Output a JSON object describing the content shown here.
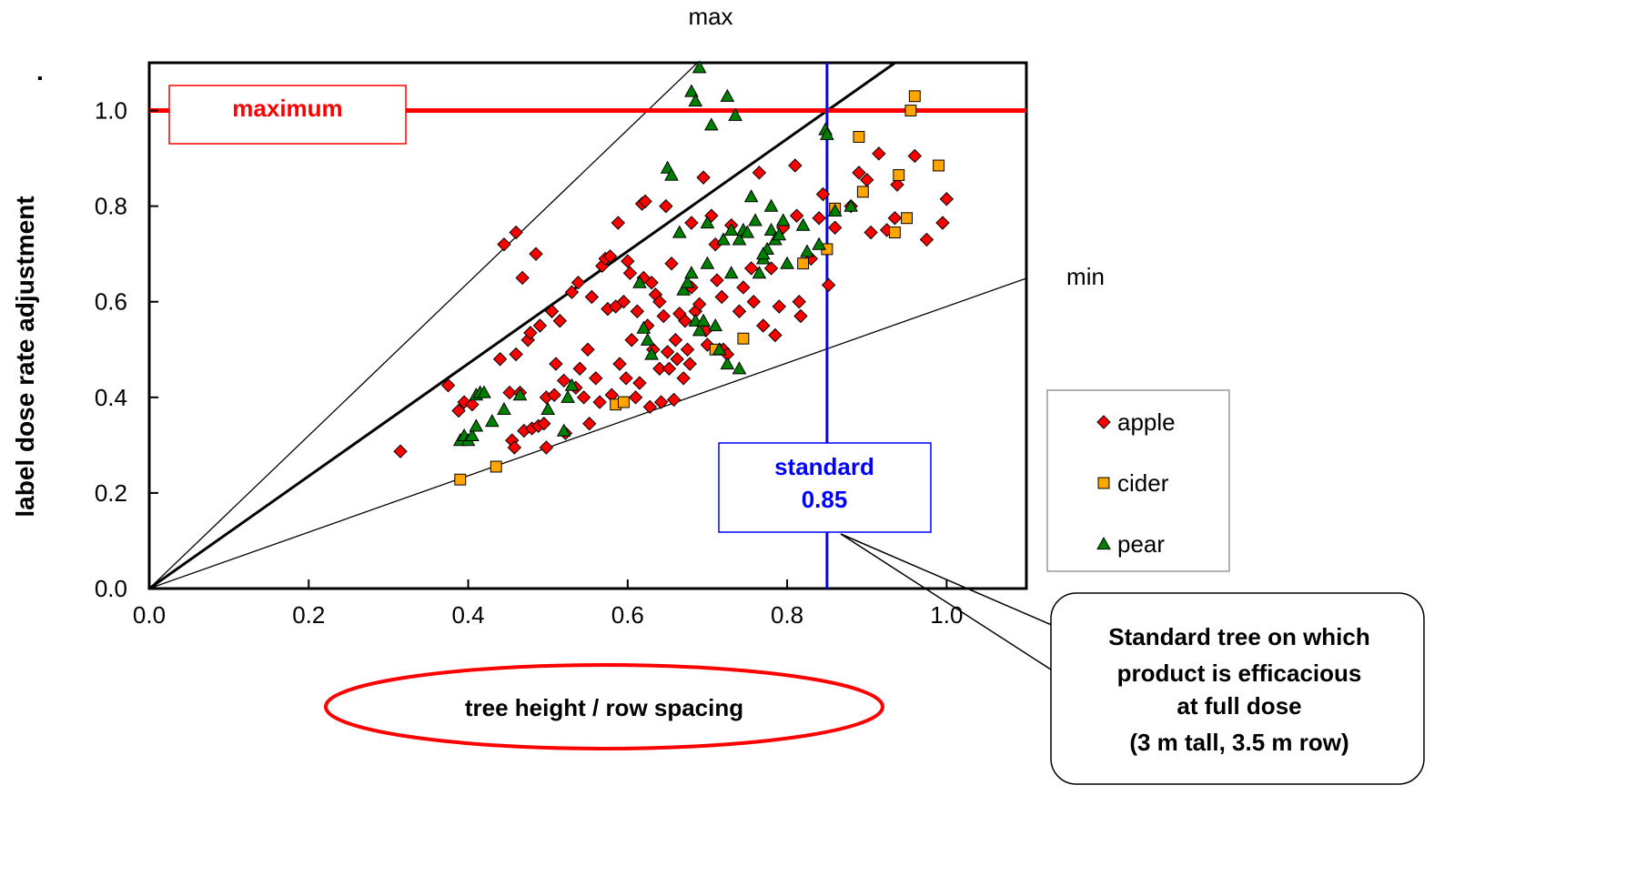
{
  "chart_data": {
    "type": "scatter",
    "title": "",
    "xlabel": "tree height / row spacing",
    "ylabel": "label dose rate adjustment",
    "ylabel_suffix": ".",
    "xlim": [
      0.0,
      1.1
    ],
    "ylim": [
      0.0,
      1.1
    ],
    "xticks": [
      "0.0",
      "0.2",
      "0.4",
      "0.6",
      "0.8",
      "1.0"
    ],
    "yticks": [
      "0.0",
      "0.2",
      "0.4",
      "0.6",
      "0.8",
      "1.0"
    ],
    "grid": false,
    "legend_position": "right",
    "reference_lines": {
      "max_label": "max",
      "min_label": "min",
      "max_slope": 1.6,
      "mid_slope": 1.176,
      "min_slope": 0.59,
      "maximum_label": "maximum",
      "maximum_value": 1.0,
      "standard_title": "standard",
      "standard_value_text": "0.85",
      "standard_value": 0.85
    },
    "callout": {
      "lines": [
        "Standard tree on which",
        "product is efficacious",
        "at full dose",
        "(3 m tall, 3.5 m row)"
      ]
    },
    "colors": {
      "apple": "#ff0000",
      "cider": "#ffa500",
      "pear": "#008000",
      "maximum_line": "#ff0000",
      "standard_line": "#0000ff"
    },
    "series": [
      {
        "name": "apple",
        "marker": "diamond",
        "points": [
          [
            0.315,
            0.287
          ],
          [
            0.375,
            0.425
          ],
          [
            0.388,
            0.372
          ],
          [
            0.395,
            0.39
          ],
          [
            0.405,
            0.385
          ],
          [
            0.44,
            0.48
          ],
          [
            0.445,
            0.72
          ],
          [
            0.452,
            0.41
          ],
          [
            0.455,
            0.31
          ],
          [
            0.458,
            0.295
          ],
          [
            0.46,
            0.745
          ],
          [
            0.46,
            0.49
          ],
          [
            0.465,
            0.41
          ],
          [
            0.468,
            0.65
          ],
          [
            0.47,
            0.33
          ],
          [
            0.475,
            0.52
          ],
          [
            0.478,
            0.535
          ],
          [
            0.48,
            0.335
          ],
          [
            0.485,
            0.7
          ],
          [
            0.488,
            0.34
          ],
          [
            0.49,
            0.55
          ],
          [
            0.495,
            0.345
          ],
          [
            0.498,
            0.295
          ],
          [
            0.498,
            0.4
          ],
          [
            0.505,
            0.58
          ],
          [
            0.508,
            0.405
          ],
          [
            0.51,
            0.47
          ],
          [
            0.515,
            0.56
          ],
          [
            0.52,
            0.435
          ],
          [
            0.522,
            0.325
          ],
          [
            0.53,
            0.62
          ],
          [
            0.535,
            0.42
          ],
          [
            0.538,
            0.64
          ],
          [
            0.54,
            0.46
          ],
          [
            0.545,
            0.4
          ],
          [
            0.55,
            0.5
          ],
          [
            0.552,
            0.345
          ],
          [
            0.555,
            0.61
          ],
          [
            0.56,
            0.44
          ],
          [
            0.565,
            0.39
          ],
          [
            0.568,
            0.675
          ],
          [
            0.572,
            0.69
          ],
          [
            0.575,
            0.585
          ],
          [
            0.578,
            0.695
          ],
          [
            0.58,
            0.405
          ],
          [
            0.585,
            0.59
          ],
          [
            0.588,
            0.765
          ],
          [
            0.59,
            0.47
          ],
          [
            0.595,
            0.6
          ],
          [
            0.598,
            0.44
          ],
          [
            0.6,
            0.685
          ],
          [
            0.603,
            0.66
          ],
          [
            0.605,
            0.52
          ],
          [
            0.61,
            0.4
          ],
          [
            0.612,
            0.58
          ],
          [
            0.615,
            0.43
          ],
          [
            0.618,
            0.805
          ],
          [
            0.62,
            0.65
          ],
          [
            0.622,
            0.81
          ],
          [
            0.625,
            0.55
          ],
          [
            0.628,
            0.38
          ],
          [
            0.63,
            0.64
          ],
          [
            0.632,
            0.5
          ],
          [
            0.635,
            0.615
          ],
          [
            0.64,
            0.46
          ],
          [
            0.642,
            0.39
          ],
          [
            0.645,
            0.57
          ],
          [
            0.648,
            0.8
          ],
          [
            0.65,
            0.495
          ],
          [
            0.652,
            0.46
          ],
          [
            0.655,
            0.68
          ],
          [
            0.658,
            0.395
          ],
          [
            0.66,
            0.52
          ],
          [
            0.662,
            0.48
          ],
          [
            0.665,
            0.575
          ],
          [
            0.67,
            0.44
          ],
          [
            0.672,
            0.56
          ],
          [
            0.675,
            0.5
          ],
          [
            0.678,
            0.47
          ],
          [
            0.68,
            0.63
          ],
          [
            0.685,
            0.58
          ],
          [
            0.69,
            0.595
          ],
          [
            0.695,
            0.86
          ],
          [
            0.698,
            0.54
          ],
          [
            0.7,
            0.51
          ],
          [
            0.71,
            0.72
          ],
          [
            0.712,
            0.645
          ],
          [
            0.718,
            0.61
          ],
          [
            0.72,
            0.5
          ],
          [
            0.725,
            0.49
          ],
          [
            0.73,
            0.76
          ],
          [
            0.74,
            0.58
          ],
          [
            0.745,
            0.63
          ],
          [
            0.755,
            0.67
          ],
          [
            0.758,
            0.6
          ],
          [
            0.765,
            0.87
          ],
          [
            0.77,
            0.55
          ],
          [
            0.78,
            0.67
          ],
          [
            0.785,
            0.53
          ],
          [
            0.79,
            0.59
          ],
          [
            0.795,
            0.755
          ],
          [
            0.81,
            0.885
          ],
          [
            0.812,
            0.78
          ],
          [
            0.815,
            0.6
          ],
          [
            0.817,
            0.57
          ],
          [
            0.83,
            0.69
          ],
          [
            0.84,
            0.775
          ],
          [
            0.845,
            0.825
          ],
          [
            0.852,
            0.635
          ],
          [
            0.86,
            0.755
          ],
          [
            0.88,
            0.8
          ],
          [
            0.89,
            0.87
          ],
          [
            0.9,
            0.855
          ],
          [
            0.905,
            0.745
          ],
          [
            0.915,
            0.91
          ],
          [
            0.925,
            0.75
          ],
          [
            0.935,
            0.775
          ],
          [
            0.938,
            0.845
          ],
          [
            0.96,
            0.905
          ],
          [
            0.975,
            0.73
          ],
          [
            0.995,
            0.765
          ],
          [
            1.0,
            0.815
          ],
          [
            0.64,
            0.6
          ],
          [
            0.705,
            0.78
          ],
          [
            0.68,
            0.765
          ]
        ]
      },
      {
        "name": "cider",
        "marker": "square",
        "points": [
          [
            0.39,
            0.228
          ],
          [
            0.435,
            0.255
          ],
          [
            0.585,
            0.385
          ],
          [
            0.595,
            0.39
          ],
          [
            0.71,
            0.5
          ],
          [
            0.745,
            0.523
          ],
          [
            0.82,
            0.68
          ],
          [
            0.85,
            0.71
          ],
          [
            0.86,
            0.795
          ],
          [
            0.89,
            0.945
          ],
          [
            0.895,
            0.83
          ],
          [
            0.935,
            0.745
          ],
          [
            0.94,
            0.865
          ],
          [
            0.95,
            0.775
          ],
          [
            0.955,
            1.0
          ],
          [
            0.96,
            1.03
          ],
          [
            0.99,
            0.885
          ]
        ]
      },
      {
        "name": "pear",
        "marker": "triangle",
        "points": [
          [
            0.39,
            0.31
          ],
          [
            0.395,
            0.32
          ],
          [
            0.4,
            0.31
          ],
          [
            0.405,
            0.32
          ],
          [
            0.41,
            0.34
          ],
          [
            0.41,
            0.405
          ],
          [
            0.415,
            0.41
          ],
          [
            0.42,
            0.41
          ],
          [
            0.43,
            0.35
          ],
          [
            0.445,
            0.375
          ],
          [
            0.465,
            0.405
          ],
          [
            0.5,
            0.375
          ],
          [
            0.52,
            0.33
          ],
          [
            0.525,
            0.4
          ],
          [
            0.53,
            0.425
          ],
          [
            0.615,
            0.64
          ],
          [
            0.62,
            0.545
          ],
          [
            0.625,
            0.52
          ],
          [
            0.63,
            0.49
          ],
          [
            0.65,
            0.88
          ],
          [
            0.655,
            0.865
          ],
          [
            0.665,
            0.745
          ],
          [
            0.67,
            0.625
          ],
          [
            0.675,
            0.64
          ],
          [
            0.68,
            0.66
          ],
          [
            0.68,
            1.04
          ],
          [
            0.685,
            1.02
          ],
          [
            0.685,
            0.56
          ],
          [
            0.69,
            1.09
          ],
          [
            0.69,
            0.54
          ],
          [
            0.695,
            0.56
          ],
          [
            0.7,
            0.68
          ],
          [
            0.7,
            0.765
          ],
          [
            0.705,
            0.97
          ],
          [
            0.71,
            0.55
          ],
          [
            0.715,
            0.5
          ],
          [
            0.72,
            0.73
          ],
          [
            0.725,
            1.03
          ],
          [
            0.725,
            0.47
          ],
          [
            0.73,
            0.66
          ],
          [
            0.73,
            0.75
          ],
          [
            0.735,
            0.99
          ],
          [
            0.74,
            0.46
          ],
          [
            0.74,
            0.73
          ],
          [
            0.745,
            0.75
          ],
          [
            0.75,
            0.745
          ],
          [
            0.755,
            0.82
          ],
          [
            0.76,
            0.77
          ],
          [
            0.765,
            0.66
          ],
          [
            0.77,
            0.69
          ],
          [
            0.775,
            0.71
          ],
          [
            0.78,
            0.75
          ],
          [
            0.785,
            0.73
          ],
          [
            0.79,
            0.74
          ],
          [
            0.795,
            0.77
          ],
          [
            0.8,
            0.68
          ],
          [
            0.82,
            0.76
          ],
          [
            0.825,
            0.705
          ],
          [
            0.84,
            0.72
          ],
          [
            0.848,
            0.96
          ],
          [
            0.85,
            0.95
          ],
          [
            0.86,
            0.79
          ],
          [
            0.88,
            0.8
          ],
          [
            0.78,
            0.8
          ],
          [
            0.77,
            0.7
          ]
        ]
      }
    ]
  }
}
